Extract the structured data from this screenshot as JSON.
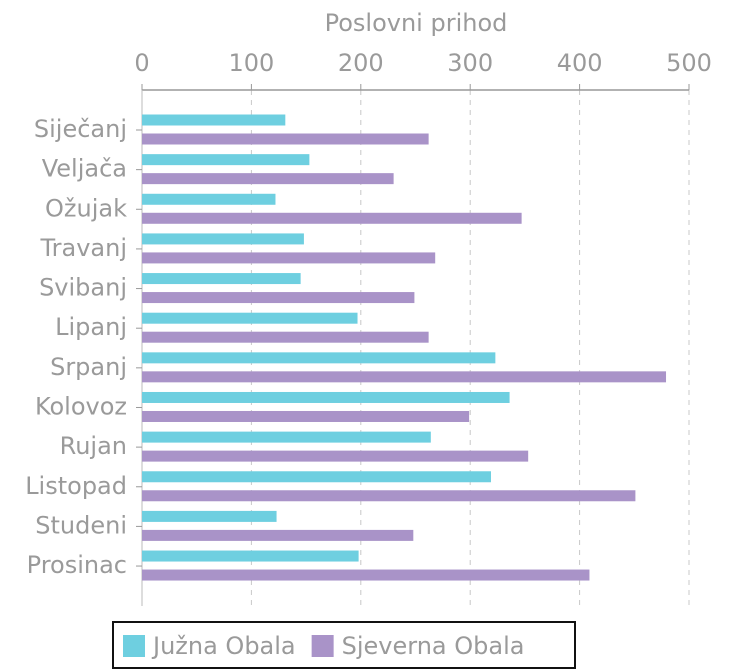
{
  "chart_data": {
    "type": "barh",
    "xlabel": "Poslovni prihod",
    "categories": [
      "Siječanj",
      "Veljača",
      "Ožujak",
      "Travanj",
      "Svibanj",
      "Lipanj",
      "Srpanj",
      "Kolovoz",
      "Rujan",
      "Listopad",
      "Studeni",
      "Prosinac"
    ],
    "series": [
      {
        "name": "Južna Obala",
        "color": "#6ecfe0",
        "values": [
          131,
          153,
          122,
          148,
          145,
          197,
          323,
          336,
          264,
          319,
          123,
          198
        ]
      },
      {
        "name": "Sjeverna Obala",
        "color": "#a993c8",
        "values": [
          262,
          230,
          347,
          268,
          249,
          262,
          479,
          299,
          353,
          451,
          248,
          409
        ]
      }
    ],
    "xlim": [
      0,
      500
    ],
    "xticks": [
      0,
      100,
      200,
      300,
      400,
      500
    ],
    "grid": true,
    "legend": "bottom"
  }
}
